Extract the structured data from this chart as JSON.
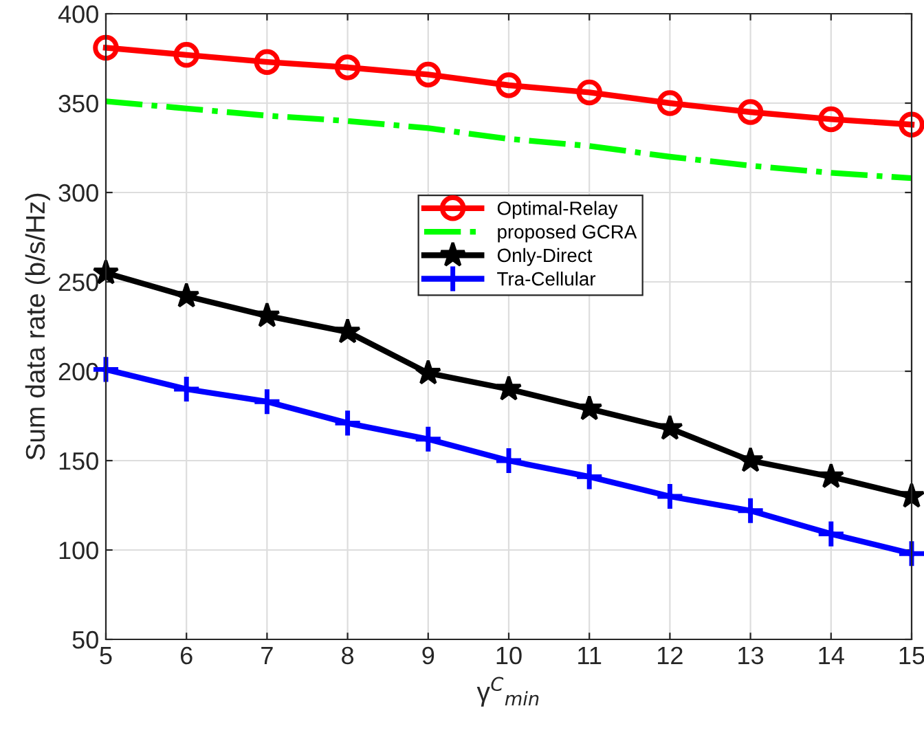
{
  "chart_data": {
    "type": "line",
    "xlabel": "γ$^{C}$$_{min}$",
    "ylabel": "Sum data rate (b/s/Hz)",
    "x": [
      5,
      6,
      7,
      8,
      9,
      10,
      11,
      12,
      13,
      14,
      15
    ],
    "series": [
      {
        "name": "Optimal-Relay",
        "color": "#ff0000",
        "marker": "circle",
        "line_style": "solid",
        "values": [
          381,
          377,
          373,
          370,
          366,
          360,
          356,
          350,
          345,
          341,
          338
        ]
      },
      {
        "name": "proposed GCRA",
        "color": "#00ff00",
        "marker": "none",
        "line_style": "dashdot",
        "values": [
          351,
          347,
          343,
          340,
          336,
          330,
          326,
          320,
          315,
          311,
          308
        ]
      },
      {
        "name": "Only-Direct",
        "color": "#000000",
        "marker": "star",
        "line_style": "solid",
        "values": [
          255,
          242,
          231,
          222,
          199,
          190,
          179,
          168,
          150,
          141,
          130
        ]
      },
      {
        "name": "Tra-Cellular",
        "color": "#0000ff",
        "marker": "cross",
        "line_style": "solid",
        "values": [
          201,
          190,
          183,
          171,
          162,
          150,
          141,
          130,
          122,
          109,
          98
        ]
      }
    ],
    "xlim": [
      5,
      15
    ],
    "xticks": [
      5,
      6,
      7,
      8,
      9,
      10,
      11,
      12,
      13,
      14,
      15
    ],
    "ylim": [
      50,
      400
    ],
    "yticks": [
      50,
      100,
      150,
      200,
      250,
      300,
      350,
      400
    ],
    "grid": true,
    "legend": "center"
  }
}
